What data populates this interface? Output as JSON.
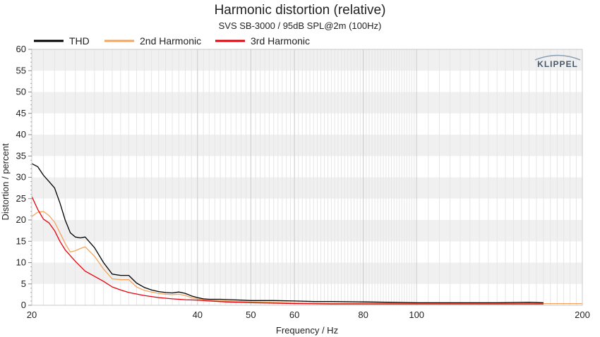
{
  "chart_data": {
    "type": "line",
    "title": "Harmonic distortion (relative)",
    "subtitle": "SVS SB-3000 / 95dB SPL@2m (100Hz)",
    "xlabel": "Frequency / Hz",
    "ylabel": "Distortion / percent",
    "x_scale": "log",
    "xlim": [
      20,
      200
    ],
    "ylim": [
      0,
      60
    ],
    "x_ticks": [
      "20",
      "40",
      "50",
      "60",
      "80",
      "100",
      "200"
    ],
    "y_ticks": [
      "0",
      "5",
      "10",
      "15",
      "20",
      "25",
      "30",
      "35",
      "40",
      "45",
      "50",
      "55",
      "60"
    ],
    "legend_position": "top-left",
    "grid": true,
    "watermark": "KLIPPEL",
    "series": [
      {
        "name": "THD",
        "color": "#000000",
        "x": [
          20,
          20.5,
          21,
          21.5,
          22,
          22.5,
          23,
          23.5,
          24,
          24.5,
          25,
          26,
          27,
          28,
          29,
          30,
          31,
          32,
          33,
          34,
          35,
          36,
          37,
          38,
          39,
          40,
          41,
          42,
          44,
          46,
          48,
          50,
          55,
          60,
          65,
          70,
          80,
          90,
          100,
          120,
          140,
          160,
          170
        ],
        "y": [
          33.2,
          32.5,
          30.5,
          29,
          27.5,
          24,
          20,
          17,
          16,
          15.8,
          16,
          13.5,
          10,
          7.3,
          7,
          7,
          5.2,
          4.2,
          3.6,
          3.2,
          3,
          2.9,
          3.1,
          2.8,
          2.2,
          1.8,
          1.5,
          1.4,
          1.4,
          1.3,
          1.2,
          1.1,
          1.1,
          1,
          0.9,
          0.9,
          0.8,
          0.7,
          0.6,
          0.6,
          0.6,
          0.7,
          0.6
        ]
      },
      {
        "name": "2nd Harmonic",
        "color": "#f4a45e",
        "x": [
          20,
          20.5,
          21,
          21.5,
          22,
          22.5,
          23,
          23.5,
          24,
          24.5,
          25,
          26,
          27,
          28,
          29,
          30,
          31,
          32,
          33,
          34,
          35,
          36,
          37,
          38,
          39,
          40,
          42,
          45,
          50,
          55,
          60,
          70,
          80,
          100,
          120,
          150,
          170,
          200
        ],
        "y": [
          20.8,
          21.8,
          22,
          21,
          19.5,
          17,
          14.5,
          12.5,
          12.8,
          13.3,
          13.7,
          11.5,
          8.5,
          6.2,
          6,
          6,
          4.3,
          3.5,
          3.1,
          2.8,
          2.6,
          2.5,
          2.6,
          2.3,
          1.8,
          1.5,
          1.2,
          1,
          0.8,
          0.7,
          0.6,
          0.5,
          0.5,
          0.4,
          0.4,
          0.4,
          0.4,
          0.4
        ]
      },
      {
        "name": "3rd Harmonic",
        "color": "#e8000b",
        "x": [
          20,
          20.5,
          21,
          21.5,
          22,
          22.5,
          23,
          24,
          25,
          26,
          27,
          28,
          29,
          30,
          32,
          34,
          36,
          38,
          40,
          42,
          45,
          50,
          55,
          60,
          70,
          80,
          100,
          120,
          150,
          170
        ],
        "y": [
          25.5,
          22.5,
          20.2,
          19.3,
          17.5,
          15,
          13,
          10.3,
          8,
          6.8,
          5.6,
          4.3,
          3.6,
          3,
          2.3,
          1.8,
          1.5,
          1.3,
          1.2,
          1,
          0.8,
          0.6,
          0.5,
          0.4,
          0.3,
          0.3,
          0.3,
          0.3,
          0.3,
          0.3
        ]
      }
    ]
  }
}
